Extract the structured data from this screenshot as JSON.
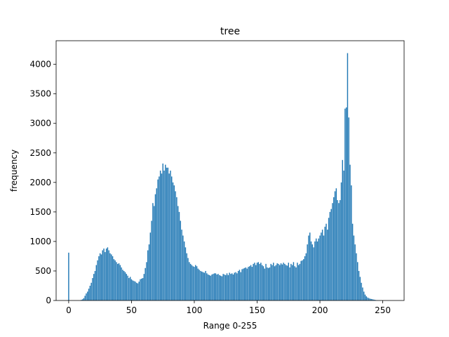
{
  "chart_data": {
    "type": "bar",
    "title": "tree",
    "xlabel": "Range 0-255",
    "ylabel": "frequency",
    "color": "#1f77b4",
    "x": [
      0,
      1,
      2,
      3,
      4,
      5,
      6,
      7,
      8,
      9,
      10,
      11,
      12,
      13,
      14,
      15,
      16,
      17,
      18,
      19,
      20,
      21,
      22,
      23,
      24,
      25,
      26,
      27,
      28,
      29,
      30,
      31,
      32,
      33,
      34,
      35,
      36,
      37,
      38,
      39,
      40,
      41,
      42,
      43,
      44,
      45,
      46,
      47,
      48,
      49,
      50,
      51,
      52,
      53,
      54,
      55,
      56,
      57,
      58,
      59,
      60,
      61,
      62,
      63,
      64,
      65,
      66,
      67,
      68,
      69,
      70,
      71,
      72,
      73,
      74,
      75,
      76,
      77,
      78,
      79,
      80,
      81,
      82,
      83,
      84,
      85,
      86,
      87,
      88,
      89,
      90,
      91,
      92,
      93,
      94,
      95,
      96,
      97,
      98,
      99,
      100,
      101,
      102,
      103,
      104,
      105,
      106,
      107,
      108,
      109,
      110,
      111,
      112,
      113,
      114,
      115,
      116,
      117,
      118,
      119,
      120,
      121,
      122,
      123,
      124,
      125,
      126,
      127,
      128,
      129,
      130,
      131,
      132,
      133,
      134,
      135,
      136,
      137,
      138,
      139,
      140,
      141,
      142,
      143,
      144,
      145,
      146,
      147,
      148,
      149,
      150,
      151,
      152,
      153,
      154,
      155,
      156,
      157,
      158,
      159,
      160,
      161,
      162,
      163,
      164,
      165,
      166,
      167,
      168,
      169,
      170,
      171,
      172,
      173,
      174,
      175,
      176,
      177,
      178,
      179,
      180,
      181,
      182,
      183,
      184,
      185,
      186,
      187,
      188,
      189,
      190,
      191,
      192,
      193,
      194,
      195,
      196,
      197,
      198,
      199,
      200,
      201,
      202,
      203,
      204,
      205,
      206,
      207,
      208,
      209,
      210,
      211,
      212,
      213,
      214,
      215,
      216,
      217,
      218,
      219,
      220,
      221,
      222,
      223,
      224,
      225,
      226,
      227,
      228,
      229,
      230,
      231,
      232,
      233,
      234,
      235,
      236,
      237,
      238,
      239,
      240,
      241,
      242,
      243,
      244,
      245,
      246,
      247,
      248,
      249,
      250,
      251,
      252,
      253,
      254,
      255
    ],
    "values": [
      810,
      0,
      0,
      0,
      0,
      0,
      0,
      0,
      0,
      0,
      10,
      20,
      40,
      80,
      120,
      150,
      200,
      250,
      300,
      380,
      450,
      500,
      600,
      680,
      750,
      800,
      780,
      850,
      880,
      820,
      880,
      900,
      850,
      800,
      780,
      750,
      700,
      680,
      650,
      620,
      630,
      600,
      560,
      520,
      500,
      480,
      450,
      420,
      380,
      400,
      360,
      340,
      330,
      320,
      300,
      290,
      320,
      360,
      370,
      380,
      450,
      550,
      650,
      850,
      950,
      1150,
      1350,
      1650,
      1600,
      1800,
      1900,
      2050,
      2100,
      2200,
      2150,
      2320,
      2200,
      2300,
      2250,
      2250,
      2150,
      2200,
      2100,
      2000,
      1950,
      1850,
      1750,
      1600,
      1500,
      1350,
      1200,
      1100,
      1000,
      900,
      800,
      720,
      650,
      620,
      600,
      580,
      570,
      600,
      580,
      540,
      520,
      500,
      490,
      480,
      470,
      500,
      460,
      440,
      430,
      420,
      440,
      450,
      460,
      460,
      440,
      450,
      430,
      420,
      410,
      450,
      440,
      430,
      460,
      430,
      470,
      450,
      460,
      440,
      470,
      480,
      460,
      500,
      520,
      480,
      530,
      540,
      550,
      560,
      540,
      570,
      580,
      600,
      570,
      620,
      640,
      600,
      640,
      650,
      620,
      640,
      600,
      580,
      540,
      620,
      560,
      550,
      560,
      620,
      600,
      640,
      580,
      600,
      630,
      620,
      600,
      630,
      610,
      640,
      620,
      600,
      590,
      640,
      560,
      620,
      600,
      650,
      580,
      560,
      640,
      600,
      620,
      670,
      680,
      700,
      750,
      800,
      950,
      1100,
      1150,
      1000,
      950,
      900,
      1000,
      1050,
      1000,
      1050,
      1100,
      1150,
      1200,
      1100,
      1250,
      1300,
      1200,
      1400,
      1500,
      1550,
      1650,
      1750,
      1850,
      1900,
      1700,
      1650,
      1700,
      2000,
      2380,
      2200,
      3250,
      3270,
      4190,
      3100,
      2300,
      1950,
      1300,
      1100,
      950,
      800,
      650,
      500,
      400,
      300,
      220,
      150,
      100,
      70,
      50,
      40,
      30,
      25,
      20,
      15,
      10,
      5,
      5,
      3,
      2,
      1,
      0,
      0,
      0,
      0,
      0,
      0
    ],
    "xlim": [
      -10,
      267
    ],
    "xticks": [
      0,
      50,
      100,
      150,
      200,
      250
    ],
    "ylim": [
      0,
      4400
    ],
    "yticks": [
      0,
      500,
      1000,
      1500,
      2000,
      2500,
      3000,
      3500,
      4000
    ]
  }
}
